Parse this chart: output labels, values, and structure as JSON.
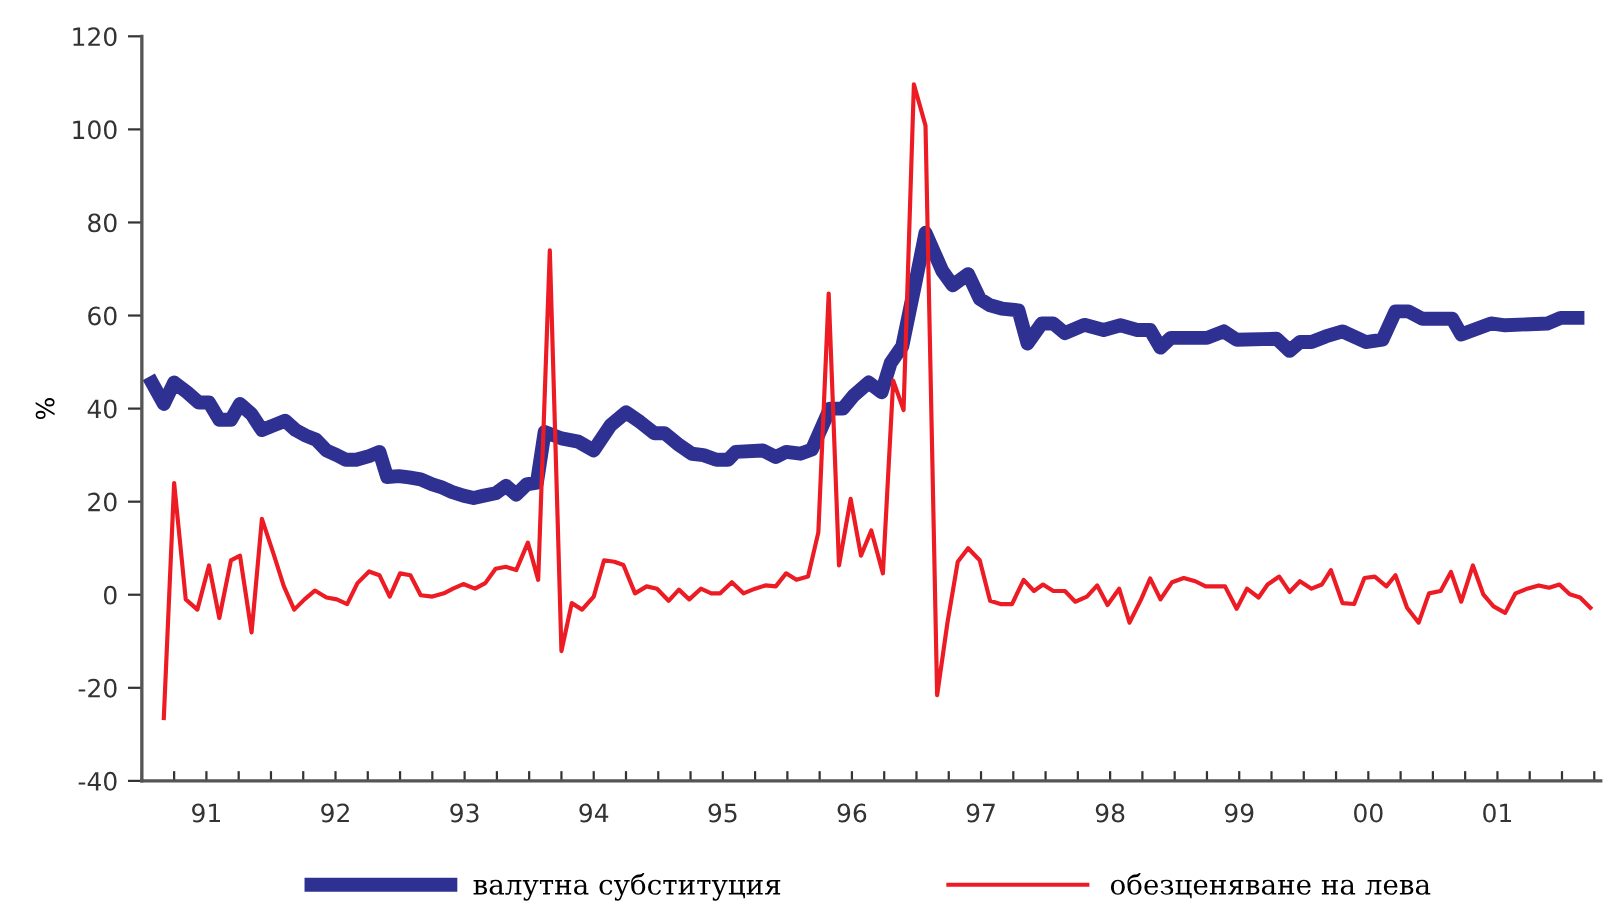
{
  "chart_data": {
    "type": "line",
    "ylabel": "%",
    "xlim": [
      1990.5,
      2001.8
    ],
    "ylim": [
      -40,
      120
    ],
    "yticks": [
      -40,
      -20,
      0,
      20,
      40,
      60,
      80,
      100,
      120
    ],
    "xticks": [
      {
        "value": 1990.5,
        "label": null
      },
      {
        "value": 1990.75,
        "label": null
      },
      {
        "value": 1991,
        "label": "91"
      },
      {
        "value": 1991.25,
        "label": null
      },
      {
        "value": 1991.5,
        "label": null
      },
      {
        "value": 1991.75,
        "label": null
      },
      {
        "value": 1992,
        "label": "92"
      },
      {
        "value": 1992.25,
        "label": null
      },
      {
        "value": 1992.5,
        "label": null
      },
      {
        "value": 1992.75,
        "label": null
      },
      {
        "value": 1993,
        "label": "93"
      },
      {
        "value": 1993.25,
        "label": null
      },
      {
        "value": 1993.5,
        "label": null
      },
      {
        "value": 1993.75,
        "label": null
      },
      {
        "value": 1994,
        "label": "94"
      },
      {
        "value": 1994.25,
        "label": null
      },
      {
        "value": 1994.5,
        "label": null
      },
      {
        "value": 1994.75,
        "label": null
      },
      {
        "value": 1995,
        "label": "95"
      },
      {
        "value": 1995.25,
        "label": null
      },
      {
        "value": 1995.5,
        "label": null
      },
      {
        "value": 1995.75,
        "label": null
      },
      {
        "value": 1996,
        "label": "96"
      },
      {
        "value": 1996.25,
        "label": null
      },
      {
        "value": 1996.5,
        "label": null
      },
      {
        "value": 1996.75,
        "label": null
      },
      {
        "value": 1997,
        "label": "97"
      },
      {
        "value": 1997.25,
        "label": null
      },
      {
        "value": 1997.5,
        "label": null
      },
      {
        "value": 1997.75,
        "label": null
      },
      {
        "value": 1998,
        "label": "98"
      },
      {
        "value": 1998.25,
        "label": null
      },
      {
        "value": 1998.5,
        "label": null
      },
      {
        "value": 1998.75,
        "label": null
      },
      {
        "value": 1999,
        "label": "99"
      },
      {
        "value": 1999.25,
        "label": null
      },
      {
        "value": 1999.5,
        "label": null
      },
      {
        "value": 1999.75,
        "label": null
      },
      {
        "value": 2000,
        "label": "00"
      },
      {
        "value": 2000.25,
        "label": null
      },
      {
        "value": 2000.5,
        "label": null
      },
      {
        "value": 2000.75,
        "label": null
      },
      {
        "value": 2001,
        "label": "01"
      },
      {
        "value": 2001.25,
        "label": null
      },
      {
        "value": 2001.5,
        "label": null
      },
      {
        "value": 2001.75,
        "label": null
      }
    ],
    "grid": false,
    "legend": "bottom",
    "marker": "none",
    "line_style": "solid",
    "series": [
      {
        "name": "валутна субституция",
        "color": "#2e3192",
        "x": [
          1990.58,
          1990.67,
          1990.75,
          1990.85,
          1990.94,
          1991.02,
          1991.1,
          1991.19,
          1991.26,
          1991.35,
          1991.43,
          1991.52,
          1991.61,
          1991.69,
          1991.77,
          1991.85,
          1991.93,
          1992.01,
          1992.08,
          1992.16,
          1992.26,
          1992.34,
          1992.4,
          1992.49,
          1992.57,
          1992.66,
          1992.75,
          1992.83,
          1992.9,
          1992.99,
          1993.07,
          1993.15,
          1993.24,
          1993.32,
          1993.4,
          1993.48,
          1993.56,
          1993.62,
          1993.75,
          1993.88,
          1994.0,
          1994.13,
          1994.25,
          1994.36,
          1994.47,
          1994.55,
          1994.65,
          1994.76,
          1994.85,
          1994.95,
          1995.04,
          1995.1,
          1995.31,
          1995.41,
          1995.49,
          1995.6,
          1995.69,
          1995.83,
          1995.93,
          1996.01,
          1996.13,
          1996.23,
          1996.3,
          1996.39,
          1996.49,
          1996.57,
          1996.7,
          1996.78,
          1996.9,
          1996.99,
          1997.07,
          1997.16,
          1997.29,
          1997.36,
          1997.47,
          1997.56,
          1997.65,
          1997.8,
          1997.95,
          1998.08,
          1998.21,
          1998.31,
          1998.39,
          1998.47,
          1998.75,
          1998.88,
          1998.98,
          1999.29,
          1999.39,
          1999.47,
          1999.56,
          1999.67,
          1999.8,
          1999.98,
          2000.11,
          2000.21,
          2000.31,
          2000.42,
          2000.65,
          2000.72,
          2000.95,
          2001.06,
          2001.39,
          2001.49,
          2001.62
        ],
        "values": [
          45.5,
          41,
          45.6,
          43.5,
          41.3,
          41.3,
          37.6,
          37.6,
          41,
          38.8,
          35.4,
          36.4,
          37.4,
          35.4,
          34.2,
          33.3,
          31,
          30,
          29,
          29,
          29.8,
          30.7,
          25.3,
          25.5,
          25.2,
          24.8,
          23.7,
          23,
          22.1,
          21.3,
          20.8,
          21.3,
          21.8,
          23.4,
          21.5,
          23.7,
          24.1,
          35,
          33.6,
          32.9,
          31,
          36.4,
          39.2,
          37.1,
          34.7,
          34.7,
          32.4,
          30.3,
          30,
          29,
          29,
          30.7,
          31,
          29.6,
          30.7,
          30.3,
          31.2,
          40,
          40,
          42.7,
          45.6,
          43.5,
          49.8,
          53.4,
          66.8,
          77.8,
          69.6,
          66.5,
          68.9,
          63.6,
          62.2,
          61.5,
          61.1,
          54,
          58.3,
          58.3,
          56.2,
          58,
          56.9,
          57.9,
          56.9,
          56.9,
          53.1,
          55.2,
          55.2,
          56.6,
          54.8,
          55,
          52.4,
          54.3,
          54.3,
          55.5,
          56.6,
          54.3,
          54.8,
          60.9,
          60.9,
          59.3,
          59.3,
          55.9,
          58.3,
          57.9,
          58.3,
          59.5,
          59.5
        ]
      },
      {
        "name": "обезценяване на лева",
        "color": "#ed1c24",
        "x": [
          1990.67,
          1990.75,
          1990.84,
          1990.93,
          1991.02,
          1991.1,
          1991.19,
          1991.26,
          1991.35,
          1991.43,
          1991.52,
          1991.6,
          1991.68,
          1991.76,
          1991.84,
          1991.93,
          1992.01,
          1992.09,
          1992.17,
          1992.26,
          1992.34,
          1992.42,
          1992.5,
          1992.58,
          1992.66,
          1992.75,
          1992.84,
          1992.91,
          1992.99,
          1993.08,
          1993.16,
          1993.24,
          1993.32,
          1993.4,
          1993.49,
          1993.57,
          1993.66,
          1993.75,
          1993.83,
          1993.91,
          1994.0,
          1994.08,
          1994.16,
          1994.23,
          1994.32,
          1994.41,
          1994.49,
          1994.58,
          1994.66,
          1994.74,
          1994.83,
          1994.91,
          1994.98,
          1995.07,
          1995.16,
          1995.25,
          1995.33,
          1995.41,
          1995.49,
          1995.57,
          1995.66,
          1995.74,
          1995.82,
          1995.9,
          1995.99,
          1996.07,
          1996.15,
          1996.24,
          1996.32,
          1996.4,
          1996.48,
          1996.57,
          1996.66,
          1996.74,
          1996.82,
          1996.9,
          1996.99,
          1997.07,
          1997.15,
          1997.24,
          1997.33,
          1997.41,
          1997.48,
          1997.56,
          1997.65,
          1997.73,
          1997.82,
          1997.9,
          1997.98,
          1998.07,
          1998.15,
          1998.24,
          1998.31,
          1998.39,
          1998.48,
          1998.57,
          1998.66,
          1998.74,
          1998.89,
          1998.98,
          1999.06,
          1999.15,
          1999.22,
          1999.31,
          1999.39,
          1999.47,
          1999.56,
          1999.64,
          1999.71,
          1999.8,
          1999.89,
          1999.97,
          2000.05,
          2000.14,
          2000.21,
          2000.3,
          2000.39,
          2000.47,
          2000.56,
          2000.64,
          2000.72,
          2000.81,
          2000.89,
          2000.97,
          2001.06,
          2001.14,
          2001.23,
          2001.32,
          2001.4,
          2001.48,
          2001.56,
          2001.64,
          2001.72
        ],
        "values": [
          -26.5,
          24,
          -1,
          -3.2,
          6.3,
          -5,
          7.4,
          8.4,
          -8.1,
          16.3,
          8.8,
          1.8,
          -3.2,
          -1,
          0.9,
          -0.6,
          -1,
          -2,
          2.5,
          5,
          4.2,
          -0.4,
          4.6,
          4.2,
          -0.1,
          -0.4,
          0.3,
          1.3,
          2.3,
          1.3,
          2.5,
          5.6,
          6,
          5.3,
          11.2,
          3.2,
          74,
          -12.1,
          -1.8,
          -3.2,
          -0.4,
          7.4,
          7.1,
          6.4,
          0.3,
          1.8,
          1.3,
          -1.3,
          1.1,
          -1,
          1.3,
          0.3,
          0.3,
          2.7,
          0.3,
          1.3,
          2,
          1.8,
          4.6,
          3.2,
          3.9,
          13.4,
          64.7,
          6.3,
          20.6,
          8.4,
          13.8,
          4.6,
          46,
          39.7,
          109.7,
          100.8,
          -21.6,
          -6,
          7.1,
          10,
          7.4,
          -1.3,
          -2,
          -2,
          3.2,
          0.8,
          2.2,
          0.8,
          0.8,
          -1.5,
          -0.4,
          2,
          -2.2,
          1.3,
          -6,
          -1,
          3.5,
          -1,
          2.7,
          3.6,
          2.9,
          1.8,
          1.8,
          -3,
          1.3,
          -0.6,
          2.2,
          3.9,
          0.6,
          2.9,
          1.3,
          2.2,
          5.3,
          -1.8,
          -2,
          3.6,
          3.9,
          1.8,
          4.2,
          -2.8,
          -6,
          0.3,
          0.8,
          4.9,
          -1.5,
          6.3,
          0.1,
          -2.5,
          -3.9,
          0.3,
          1.3,
          2,
          1.5,
          2.2,
          0.1,
          -0.6,
          -2.8
        ]
      }
    ]
  }
}
